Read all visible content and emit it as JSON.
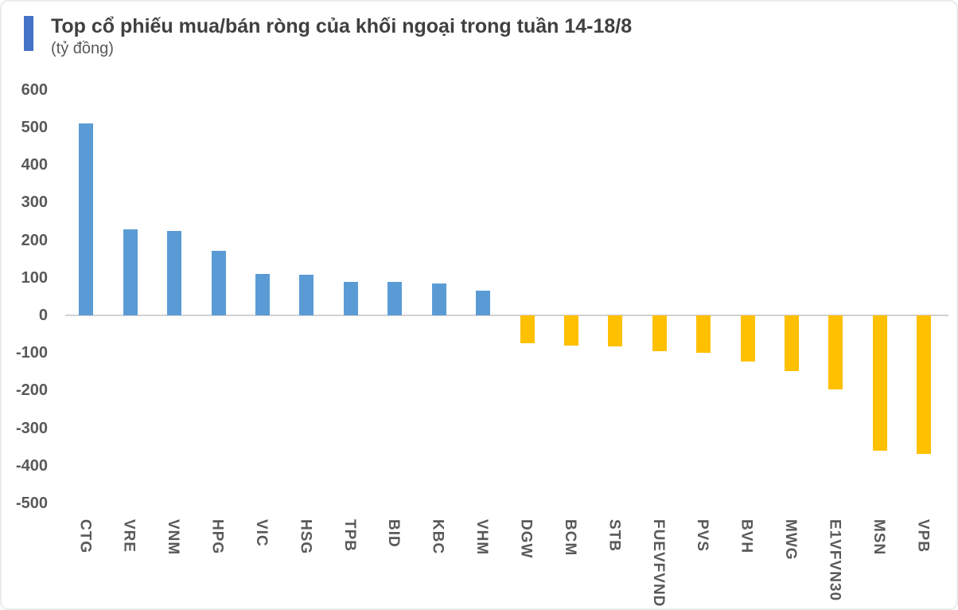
{
  "header": {
    "title": "Top cổ phiếu mua/bán ròng của khối ngoại trong tuần 14-18/8",
    "unit": "(tỷ đồng)",
    "accent_color": "#4472C4"
  },
  "chart_data": {
    "type": "bar",
    "title": "Top cổ phiếu mua/bán ròng của khối ngoại trong tuần 14-18/8",
    "subtitle": "(tỷ đồng)",
    "xlabel": "",
    "ylabel": "tỷ đồng",
    "categories": [
      "CTG",
      "VRE",
      "VNM",
      "HPG",
      "VIC",
      "HSG",
      "TPB",
      "BID",
      "KBC",
      "VHM",
      "DGW",
      "BCM",
      "STB",
      "FUEVFVND",
      "PVS",
      "BVH",
      "MWG",
      "E1VFVN30",
      "MSN",
      "VPB"
    ],
    "values": [
      510,
      229,
      225,
      171,
      111,
      108,
      89,
      88,
      85,
      65,
      -75,
      -80,
      -83,
      -95,
      -100,
      -122,
      -148,
      -198,
      -360,
      -369
    ],
    "yticks": [
      600,
      500,
      400,
      300,
      200,
      100,
      0,
      -100,
      -200,
      -300,
      -400,
      -500
    ],
    "ylim": [
      -500,
      600
    ],
    "colors": {
      "positive": "#5B9BD5",
      "negative": "#FFC000"
    },
    "grid": "zero-line-only",
    "legend": "none",
    "category_label_rotation": "vertical-top-to-bottom"
  }
}
